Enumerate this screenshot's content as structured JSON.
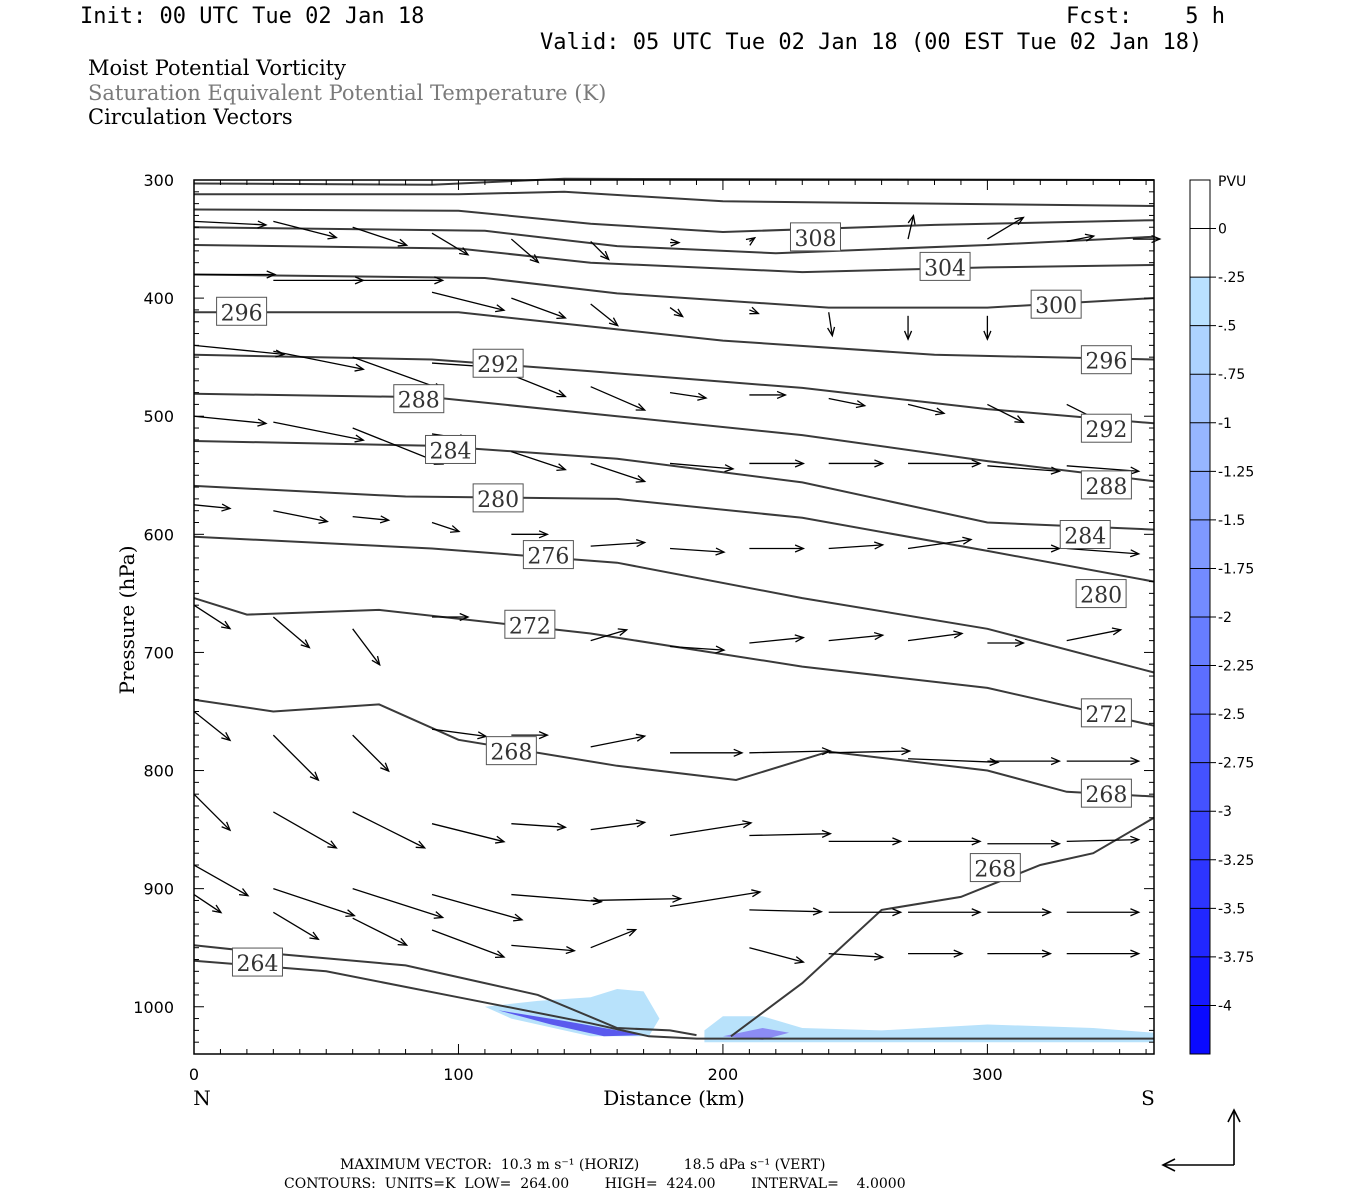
{
  "header": {
    "init": "Init: 00 UTC Tue 02 Jan 18",
    "fcst": "Fcst:    5 h",
    "valid": "Valid: 05 UTC Tue 02 Jan 18 (00 EST Tue 02 Jan 18)"
  },
  "titles": {
    "line1": "Moist Potential Vorticity",
    "line2": "Saturation Equivalent Potential Temperature (K)",
    "line3": "Circulation Vectors"
  },
  "footer": {
    "max_vector": "MAXIMUM VECTOR:  10.3 m s⁻¹ (HORIZ)          18.5 dPa s⁻¹ (VERT)",
    "contours": "CONTOURS:  UNITS=K  LOW=  264.00        HIGH=  424.00        INTERVAL=    4.0000"
  },
  "colors": {
    "contour": "#3a3a3a",
    "accent_fill": "#1a1aff",
    "title_gray": "#7a7a7a"
  },
  "chart_data": {
    "type": "contour-cross-section",
    "xlabel": "Distance (km)",
    "ylabel": "Pressure (hPa)",
    "x_start_label": "N",
    "x_end_label": "S",
    "xlim": [
      0,
      363
    ],
    "ylim": [
      1040,
      300
    ],
    "x_ticks": [
      0,
      100,
      200,
      300
    ],
    "y_ticks": [
      300,
      400,
      500,
      600,
      700,
      800,
      900,
      1000
    ],
    "colorbar": {
      "unit": "PVU",
      "labels": [
        "0",
        "-.25",
        "-.5",
        "-.75",
        "-1",
        "-1.25",
        "-1.5",
        "-1.75",
        "-2",
        "-2.25",
        "-2.5",
        "-2.75",
        "-3",
        "-3.25",
        "-3.5",
        "-3.75",
        "-4"
      ]
    },
    "contour_labels": [
      {
        "value": "308",
        "x": 235,
        "p": 349
      },
      {
        "value": "304",
        "x": 284,
        "p": 374
      },
      {
        "value": "300",
        "x": 326,
        "p": 406
      },
      {
        "value": "296",
        "x": 18,
        "p": 412
      },
      {
        "value": "296",
        "x": 345,
        "p": 453
      },
      {
        "value": "292",
        "x": 115,
        "p": 456
      },
      {
        "value": "288",
        "x": 85,
        "p": 486
      },
      {
        "value": "292",
        "x": 345,
        "p": 511
      },
      {
        "value": "284",
        "x": 97,
        "p": 529
      },
      {
        "value": "288",
        "x": 345,
        "p": 559
      },
      {
        "value": "280",
        "x": 115,
        "p": 570
      },
      {
        "value": "284",
        "x": 337,
        "p": 601
      },
      {
        "value": "276",
        "x": 134,
        "p": 618
      },
      {
        "value": "280",
        "x": 343,
        "p": 651
      },
      {
        "value": "272",
        "x": 127,
        "p": 677
      },
      {
        "value": "272",
        "x": 345,
        "p": 752
      },
      {
        "value": "268",
        "x": 120,
        "p": 784
      },
      {
        "value": "268",
        "x": 345,
        "p": 820
      },
      {
        "value": "268",
        "x": 303,
        "p": 883
      },
      {
        "value": "264",
        "x": 24,
        "p": 963
      }
    ],
    "contour_values": [
      264,
      268,
      272,
      276,
      280,
      284,
      288,
      292,
      296,
      300,
      304,
      308
    ],
    "max_vector_horiz": 10.3,
    "max_vector_vert": 18.5
  }
}
